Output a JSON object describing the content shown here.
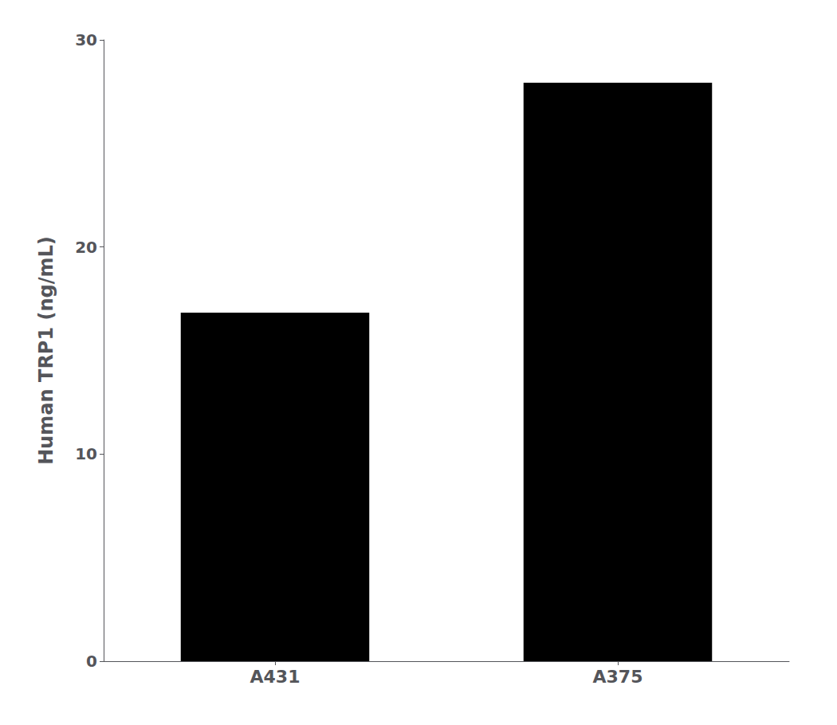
{
  "chart_data": {
    "type": "bar",
    "ylabel": "Human TRP1 (ng/mL)",
    "categories": [
      "A431",
      "A375"
    ],
    "values": [
      16.83,
      27.93
    ],
    "color": "#000000",
    "ylim": [
      0,
      30
    ],
    "yticks": [
      0,
      10,
      20,
      30
    ],
    "grid": false
  }
}
